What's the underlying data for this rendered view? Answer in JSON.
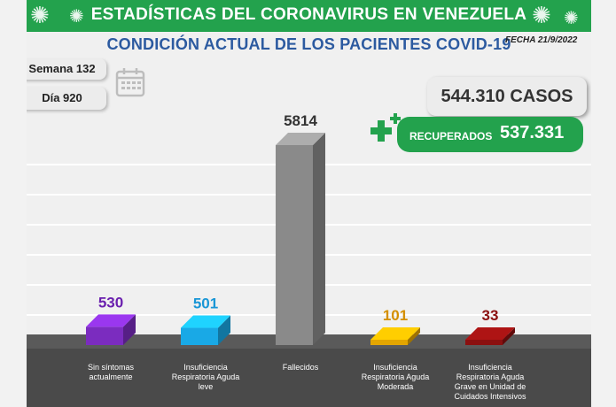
{
  "header": {
    "title": "ESTADÍSTICAS DEL CORONAVIRUS EN VENEZUELA",
    "subtitle": "CONDICIÓN ACTUAL DE LOS PACIENTES COVID-19",
    "date": "FECHA 21/9/2022"
  },
  "week_label": "Semana 132",
  "day_label": "Día 920",
  "cases_label": "544.310 CASOS",
  "recovered": {
    "label": "RECUPERADOS",
    "value": "537.331"
  },
  "colors": {
    "banner": "#23a24d",
    "subtitle": "#2c5aa0",
    "floor": "#4a4a4a"
  },
  "icons": [
    "virus-icon",
    "calendar-icon",
    "plus-icon"
  ],
  "chart_data": {
    "type": "bar",
    "categories": [
      [
        "Sin síntomas",
        "actualmente"
      ],
      [
        "Insuficiencia",
        "Respiratoria Aguda",
        "leve"
      ],
      [
        "Fallecidos"
      ],
      [
        "Insuficiencia",
        "Respiratoria Aguda",
        "Moderada"
      ],
      [
        "Insuficiencia",
        "Respiratoria Aguda",
        "Grave en Unidad de",
        "Cuidados Intensivos"
      ]
    ],
    "values": [
      530,
      501,
      5814,
      101,
      33
    ],
    "value_labels": [
      "530",
      "501",
      "5814",
      "101",
      "33"
    ],
    "colors": [
      "#7b2cbf",
      "#19a9e6",
      "#8a8a8a",
      "#e3a500",
      "#8b1010"
    ],
    "label_colors": [
      "#6a1fae",
      "#1996d6",
      "#333333",
      "#d48f00",
      "#8b1010"
    ],
    "ylim": [
      0,
      5814
    ],
    "grid": true
  }
}
